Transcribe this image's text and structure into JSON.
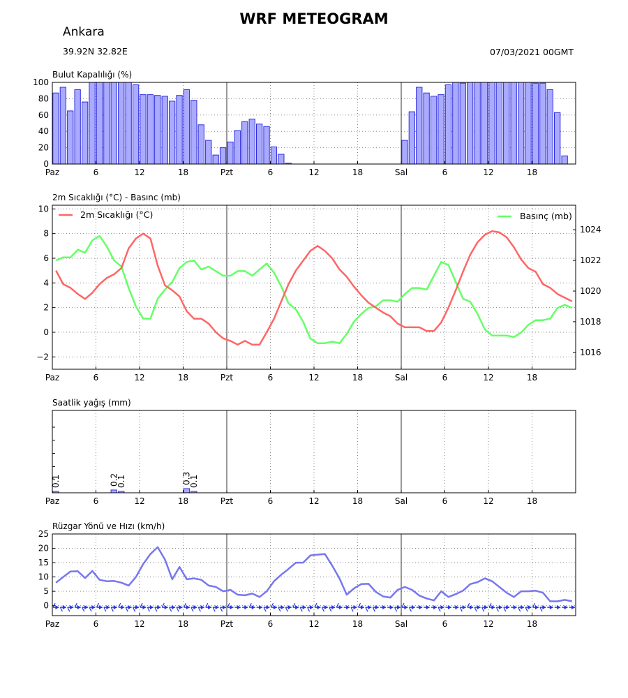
{
  "header": {
    "title": "WRF METEOGRAM",
    "city": "Ankara",
    "coords": "39.92N   32.82E",
    "date": "07/03/2021 00GMT"
  },
  "x_tick_labels": [
    "Paz",
    "6",
    "12",
    "18",
    "Pzt",
    "6",
    "12",
    "18",
    "Sal",
    "6",
    "12",
    "18"
  ],
  "colors": {
    "cloud_fill": "#aaaaff",
    "cloud_edge": "#2f2fdd",
    "temperature": "#ff6666",
    "pressure": "#66ff66",
    "precip_fill": "#aaaaff",
    "wind_line": "#7777ee",
    "wind_barb": "#2233dd"
  },
  "chart_data": [
    {
      "type": "bar",
      "title": "Bulut Kapalılığı (%)",
      "ylim": [
        0,
        100
      ],
      "yticks": [
        0,
        20,
        40,
        60,
        80,
        100
      ],
      "x": "hour index 0–71 (tick every 6 hours)",
      "values": [
        87,
        94,
        65,
        91,
        76,
        100,
        100,
        100,
        100,
        100,
        100,
        97,
        85,
        85,
        84,
        83,
        77,
        84,
        91,
        78,
        48,
        29,
        11,
        20,
        27,
        41,
        52,
        55,
        49,
        46,
        21,
        12,
        1,
        0,
        0,
        0,
        0,
        0,
        0,
        0,
        0,
        0,
        0,
        0,
        0,
        0,
        0,
        0,
        29,
        64,
        94,
        87,
        83,
        85,
        97,
        100,
        99,
        100,
        100,
        100,
        100,
        100,
        100,
        100,
        100,
        100,
        99,
        99,
        91,
        63,
        10,
        0
      ]
    },
    {
      "type": "line",
      "title": "2m Sıcaklığı (°C) - Basınc (mb)",
      "series": [
        {
          "name": "2m Sıcaklığı (°C)",
          "axis": "left",
          "ylim": [
            -3,
            10.3
          ],
          "yticks": [
            -2,
            0,
            2,
            4,
            6,
            8,
            10
          ],
          "values": [
            5.0,
            3.9,
            3.6,
            3.1,
            2.7,
            3.2,
            3.9,
            4.4,
            4.7,
            5.2,
            6.8,
            7.6,
            8.0,
            7.6,
            5.4,
            3.8,
            3.4,
            2.9,
            1.7,
            1.1,
            1.1,
            0.7,
            0.0,
            -0.5,
            -0.7,
            -1.0,
            -0.7,
            -1.0,
            -1.0,
            0.0,
            1.1,
            2.5,
            3.9,
            5.0,
            5.8,
            6.6,
            7.0,
            6.6,
            6.0,
            5.1,
            4.5,
            3.7,
            3.0,
            2.4,
            2.0,
            1.6,
            1.3,
            0.7,
            0.4,
            0.4,
            0.4,
            0.1,
            0.1,
            0.8,
            2.0,
            3.4,
            4.9,
            6.3,
            7.3,
            7.9,
            8.2,
            8.1,
            7.7,
            6.9,
            5.9,
            5.2,
            4.9,
            3.9,
            3.6,
            3.1,
            2.8,
            2.5
          ]
        },
        {
          "name": "Basınç (mb)",
          "axis": "right",
          "ylim": [
            1014.9,
            1025.6
          ],
          "yticks": [
            1016,
            1018,
            1020,
            1022,
            1024
          ],
          "values": [
            1022.0,
            1022.2,
            1022.2,
            1022.7,
            1022.5,
            1023.3,
            1023.6,
            1022.9,
            1022.0,
            1021.6,
            1020.2,
            1019.0,
            1018.2,
            1018.2,
            1019.5,
            1020.1,
            1020.6,
            1021.5,
            1021.9,
            1022.0,
            1021.4,
            1021.6,
            1021.3,
            1021.0,
            1021.0,
            1021.3,
            1021.3,
            1021.0,
            1021.4,
            1021.8,
            1021.2,
            1020.3,
            1019.2,
            1018.8,
            1018.0,
            1016.9,
            1016.6,
            1016.6,
            1016.7,
            1016.6,
            1017.2,
            1018.0,
            1018.5,
            1018.9,
            1019.0,
            1019.4,
            1019.4,
            1019.3,
            1019.8,
            1020.2,
            1020.2,
            1020.1,
            1021.0,
            1021.9,
            1021.7,
            1020.6,
            1019.5,
            1019.3,
            1018.5,
            1017.5,
            1017.1,
            1017.1,
            1017.1,
            1017.0,
            1017.3,
            1017.8,
            1018.1,
            1018.1,
            1018.2,
            1018.9,
            1019.1,
            1018.9
          ]
        }
      ],
      "legend": "top-left / top-right"
    },
    {
      "type": "bar",
      "title": "Saatlik yağış (mm)",
      "bars": [
        {
          "hour": 0,
          "value": 0.1,
          "label": "0.1"
        },
        {
          "hour": 8,
          "value": 0.2,
          "label": "0.2"
        },
        {
          "hour": 9,
          "value": 0.1,
          "label": "0.1"
        },
        {
          "hour": 18,
          "value": 0.3,
          "label": "0.3"
        },
        {
          "hour": 19,
          "value": 0.1,
          "label": "0.1"
        }
      ]
    },
    {
      "type": "line",
      "title": "Rüzgar Yönü ve Hızı (km/h)",
      "ylim": [
        -3.5,
        25
      ],
      "yticks": [
        0,
        5,
        10,
        15,
        20,
        25
      ],
      "values": [
        8.0,
        10.0,
        11.9,
        12.0,
        9.6,
        12.1,
        9.0,
        8.5,
        8.6,
        8.0,
        7.0,
        10.0,
        14.5,
        18.0,
        20.4,
        16.0,
        9.2,
        13.5,
        9.2,
        9.5,
        9.0,
        7.0,
        6.5,
        5.0,
        5.5,
        3.8,
        3.6,
        4.2,
        3.0,
        5.0,
        8.5,
        10.8,
        12.8,
        15.0,
        15.0,
        17.5,
        17.8,
        18.0,
        14.0,
        9.5,
        3.8,
        6.0,
        7.5,
        7.6,
        4.8,
        3.2,
        2.8,
        5.5,
        6.5,
        5.5,
        3.5,
        2.5,
        1.8,
        5.0,
        3.0,
        4.0,
        5.2,
        7.5,
        8.2,
        9.5,
        8.5,
        6.5,
        4.5,
        3.0,
        5.0,
        5.0,
        5.2,
        4.5,
        1.5,
        1.5,
        2.0,
        1.5
      ]
    }
  ]
}
